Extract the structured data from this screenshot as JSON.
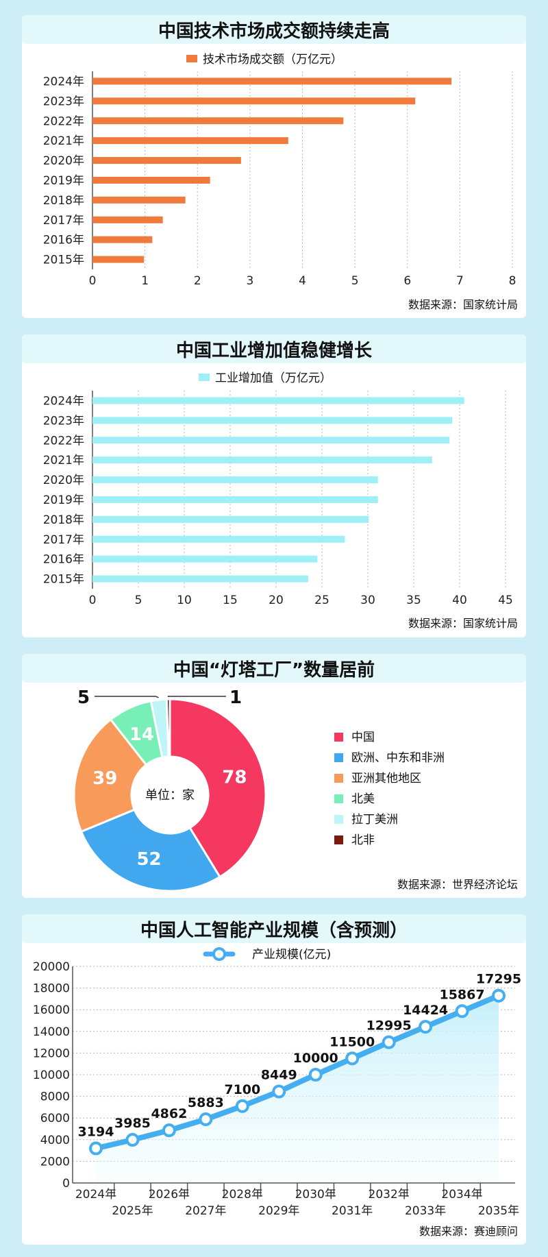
{
  "chart_data": [
    {
      "type": "bar",
      "orientation": "horizontal",
      "title": "中国技术市场成交额持续走高",
      "legend": "技术市场成交额（万亿元）",
      "categories": [
        "2024年",
        "2023年",
        "2022年",
        "2021年",
        "2020年",
        "2019年",
        "2018年",
        "2017年",
        "2016年",
        "2015年"
      ],
      "values": [
        6.84,
        6.15,
        4.78,
        3.73,
        2.83,
        2.24,
        1.77,
        1.34,
        1.14,
        0.98
      ],
      "xlim": [
        0,
        8
      ],
      "xticks": [
        "0",
        "1",
        "2",
        "3",
        "4",
        "5",
        "6",
        "7",
        "8"
      ],
      "color": "#f07a3c",
      "source": "数据来源：国家统计局"
    },
    {
      "type": "bar",
      "orientation": "horizontal",
      "title": "中国工业增加值稳健增长",
      "legend": "工业增加值（万亿元）",
      "categories": [
        "2024年",
        "2023年",
        "2022年",
        "2021年",
        "2020年",
        "2019年",
        "2018年",
        "2017年",
        "2016年",
        "2015年"
      ],
      "values": [
        40.5,
        39.2,
        38.9,
        37.0,
        31.1,
        31.1,
        30.1,
        27.5,
        24.5,
        23.5
      ],
      "xlim": [
        0,
        45
      ],
      "xticks": [
        "0",
        "5",
        "10",
        "15",
        "20",
        "25",
        "30",
        "35",
        "40",
        "45"
      ],
      "color": "#9ff0f6",
      "source": "数据来源：国家统计局"
    },
    {
      "type": "pie",
      "donut": true,
      "title": "中国“灯塔工厂”数量居前",
      "center_label": "单位：家",
      "slices": [
        {
          "label": "中国",
          "value": 78,
          "display": "78",
          "color": "#f5385f"
        },
        {
          "label": "欧洲、中东和非洲",
          "value": 52,
          "display": "52",
          "color": "#41a8f0"
        },
        {
          "label": "亚洲其他地区",
          "value": 39,
          "display": "39",
          "color": "#f89a5a"
        },
        {
          "label": "北美",
          "value": 14,
          "display": "14",
          "color": "#78efb6"
        },
        {
          "label": "拉丁美洲",
          "value": 5,
          "display": "5",
          "color": "#bff5f8"
        },
        {
          "label": "北非",
          "value": 1,
          "display": "1",
          "color": "#7a1a0e"
        }
      ],
      "source": "数据来源：世界经济论坛"
    },
    {
      "type": "line",
      "title": "中国人工智能产业规模（含预测）",
      "legend": "产业规模(亿元)",
      "x": [
        "2024年",
        "2025年",
        "2026年",
        "2027年",
        "2028年",
        "2029年",
        "2030年",
        "2031年",
        "2032年",
        "2033年",
        "2034年",
        "2035年"
      ],
      "values": [
        3194,
        3985,
        4862,
        5883,
        7100,
        8449,
        10000,
        11500,
        12995,
        14424,
        15867,
        17295
      ],
      "labels": [
        "3194",
        "3985",
        "4862",
        "5883",
        "7100",
        "8449",
        "10000",
        "11500",
        "12995",
        "14424",
        "15867",
        "17295"
      ],
      "ylim": [
        0,
        20000
      ],
      "yticks": [
        "0",
        "2000",
        "4000",
        "6000",
        "8000",
        "10000",
        "12000",
        "14000",
        "16000",
        "18000",
        "20000"
      ],
      "color": "#45aef0",
      "source": "数据来源：赛迪顾问"
    }
  ]
}
